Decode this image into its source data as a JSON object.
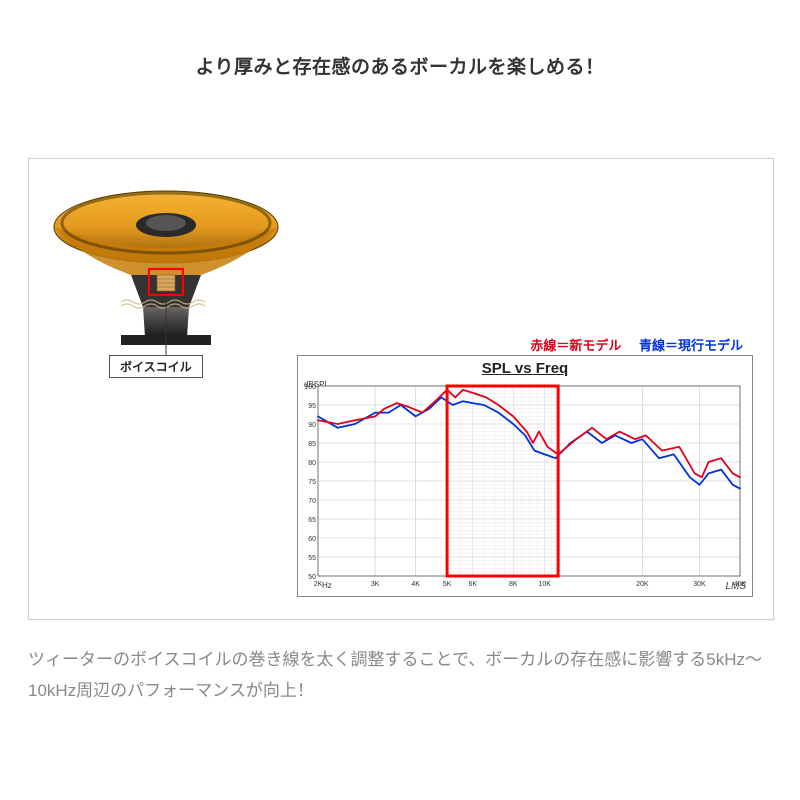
{
  "title": "より厚みと存在感のあるボーカルを楽しめる！",
  "speaker": {
    "voice_coil_label": "ボイスコイル",
    "cone_color": "#e49a1e",
    "cone_shadow": "#b7760e",
    "frame_color": "#2a2a2a",
    "coil_color": "#d8a860",
    "highlight_box_color": "#ff0000"
  },
  "legend": {
    "red_label": "赤線＝新モデル",
    "blue_label": "青線＝現行モデル",
    "red_color": "#e2001a",
    "blue_color": "#0033dd"
  },
  "chart": {
    "type": "line",
    "title": "SPL vs Freq",
    "watermark": "LMS",
    "x_unit": "Hz",
    "y_unit": "dBSPL",
    "y_min": 50,
    "y_max": 100,
    "y_step": 5,
    "x_ticks_khz": [
      2,
      3,
      4,
      5,
      6,
      8,
      10,
      20,
      30,
      40
    ],
    "x_tick_labels": [
      "2K",
      "3K",
      "4K",
      "5K",
      "6K",
      "8K",
      "10K",
      "20K",
      "30K",
      "40K"
    ],
    "x_min_khz": 2,
    "x_max_khz": 40,
    "red_series_khz_db": [
      [
        2.0,
        91
      ],
      [
        2.3,
        90
      ],
      [
        2.6,
        91
      ],
      [
        3.0,
        92
      ],
      [
        3.2,
        94
      ],
      [
        3.5,
        95.5
      ],
      [
        3.8,
        94.5
      ],
      [
        4.2,
        93
      ],
      [
        4.6,
        96
      ],
      [
        5.0,
        99
      ],
      [
        5.3,
        97
      ],
      [
        5.6,
        99
      ],
      [
        6.1,
        98
      ],
      [
        6.6,
        97
      ],
      [
        7.2,
        95
      ],
      [
        8.0,
        92
      ],
      [
        8.8,
        88
      ],
      [
        9.2,
        85
      ],
      [
        9.6,
        88
      ],
      [
        10.2,
        84
      ],
      [
        11.0,
        82
      ],
      [
        12.5,
        86
      ],
      [
        14.0,
        89
      ],
      [
        15.5,
        86
      ],
      [
        17.0,
        88
      ],
      [
        19.0,
        86
      ],
      [
        20.5,
        87
      ],
      [
        23.0,
        83
      ],
      [
        26.0,
        84
      ],
      [
        29.0,
        77
      ],
      [
        30.5,
        76
      ],
      [
        32.0,
        80
      ],
      [
        35.0,
        81
      ],
      [
        38.0,
        77
      ],
      [
        40.0,
        76
      ]
    ],
    "blue_series_khz_db": [
      [
        2.0,
        92
      ],
      [
        2.3,
        89
      ],
      [
        2.6,
        90
      ],
      [
        3.0,
        93
      ],
      [
        3.3,
        93
      ],
      [
        3.6,
        95
      ],
      [
        4.0,
        92
      ],
      [
        4.4,
        94
      ],
      [
        4.8,
        97
      ],
      [
        5.2,
        95
      ],
      [
        5.6,
        96
      ],
      [
        6.0,
        95.5
      ],
      [
        6.5,
        95
      ],
      [
        7.2,
        93
      ],
      [
        8.0,
        90
      ],
      [
        8.7,
        87
      ],
      [
        9.3,
        83
      ],
      [
        10.0,
        82
      ],
      [
        10.8,
        81
      ],
      [
        12.0,
        85
      ],
      [
        13.5,
        88
      ],
      [
        15.0,
        85
      ],
      [
        16.5,
        87
      ],
      [
        18.5,
        85
      ],
      [
        20.0,
        86
      ],
      [
        22.5,
        81
      ],
      [
        25.0,
        82
      ],
      [
        28.0,
        76
      ],
      [
        30.0,
        74
      ],
      [
        32.0,
        77
      ],
      [
        35.0,
        78
      ],
      [
        38.0,
        74
      ],
      [
        40.0,
        73
      ]
    ],
    "highlight_x_range_khz": [
      5,
      11
    ],
    "highlight_box_color": "#ff0000",
    "highlight_box_stroke_width": 3,
    "grid_color": "#c8c8c8",
    "grid_minor_color": "#e0e0e0",
    "background_color": "#ffffff",
    "line_width": 1.8,
    "red_line_color": "#e2001a",
    "blue_line_color": "#0033dd"
  },
  "footer": "ツィーターのボイスコイルの巻き線を太く調整することで、ボーカルの存在感に影響する5kHz〜10kHz周辺のパフォーマンスが向上！"
}
